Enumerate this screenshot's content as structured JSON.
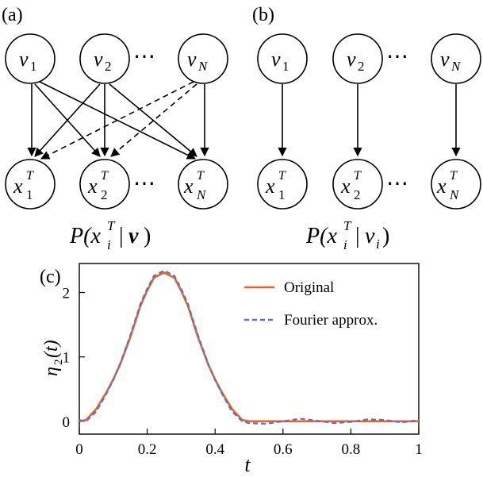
{
  "panels": {
    "a": {
      "label": "(a)",
      "top_nodes": [
        "v",
        "v",
        "v"
      ],
      "top_subs": [
        "1",
        "2",
        "N"
      ],
      "bottom_base": [
        "x",
        "x",
        "x"
      ],
      "bottom_sup": "T",
      "bottom_subs": [
        "1",
        "2",
        "N"
      ],
      "dots": "⋯",
      "caption_prefix": "P(",
      "caption_var": "x",
      "caption_sup": "T",
      "caption_sub": "i",
      "caption_bar": "|",
      "caption_cond": "v",
      "caption_suffix": ")"
    },
    "b": {
      "label": "(b)",
      "top_nodes": [
        "v",
        "v",
        "v"
      ],
      "top_subs": [
        "1",
        "2",
        "N"
      ],
      "bottom_base": [
        "x",
        "x",
        "x"
      ],
      "bottom_sup": "T",
      "bottom_subs": [
        "1",
        "2",
        "N"
      ],
      "dots": "⋯",
      "caption_prefix": "P(",
      "caption_var": "x",
      "caption_sup": "T",
      "caption_sub": "i",
      "caption_bar": "|",
      "caption_cond": "v",
      "caption_cond_sub": "i",
      "caption_suffix": ")"
    },
    "c": {
      "label": "(c)"
    }
  },
  "chart_data": {
    "type": "line",
    "xlabel": "t",
    "ylabel": "η₂(t)",
    "ylabel_base": "η",
    "ylabel_sub": "2",
    "ylabel_arg": "(t)",
    "xlim": [
      0,
      1
    ],
    "ylim": [
      -0.2,
      2.45
    ],
    "xticks": [
      "0",
      "0.2",
      "0.4",
      "0.6",
      "0.8",
      "1"
    ],
    "xtick_values": [
      0,
      0.2,
      0.4,
      0.6,
      0.8,
      1
    ],
    "yticks": [
      "0",
      "1",
      "2"
    ],
    "ytick_values": [
      0,
      1,
      2
    ],
    "grid": false,
    "legend_position": "top-right",
    "series": [
      {
        "name": "Original",
        "color": "#e8622c",
        "style": "solid",
        "x": [
          0,
          0.02,
          0.05,
          0.08,
          0.1,
          0.12,
          0.15,
          0.18,
          0.2,
          0.22,
          0.25,
          0.28,
          0.3,
          0.32,
          0.35,
          0.38,
          0.4,
          0.42,
          0.45,
          0.48,
          0.5,
          0.55,
          0.6,
          0.65,
          0.7,
          0.75,
          0.8,
          0.85,
          0.9,
          0.95,
          1.0
        ],
        "y": [
          0.0,
          0.02,
          0.19,
          0.45,
          0.65,
          0.88,
          1.3,
          1.79,
          2.03,
          2.23,
          2.31,
          2.23,
          2.03,
          1.79,
          1.3,
          0.88,
          0.65,
          0.45,
          0.19,
          0.02,
          0.0,
          0.0,
          0.0,
          0.0,
          0.0,
          0.0,
          0.0,
          0.0,
          0.0,
          0.0,
          0.0
        ]
      },
      {
        "name": "Fourier approx.",
        "color": "#5a74c9",
        "style": "dashed",
        "x": [
          0,
          0.02,
          0.05,
          0.08,
          0.1,
          0.12,
          0.15,
          0.18,
          0.2,
          0.22,
          0.25,
          0.28,
          0.3,
          0.32,
          0.35,
          0.38,
          0.4,
          0.42,
          0.45,
          0.48,
          0.5,
          0.55,
          0.6,
          0.65,
          0.7,
          0.75,
          0.8,
          0.85,
          0.9,
          0.95,
          1.0
        ],
        "y": [
          0.02,
          0.0,
          0.15,
          0.43,
          0.64,
          0.89,
          1.33,
          1.82,
          2.06,
          2.26,
          2.34,
          2.26,
          2.06,
          1.82,
          1.33,
          0.89,
          0.64,
          0.43,
          0.15,
          0.0,
          -0.03,
          -0.04,
          0.0,
          0.04,
          0.01,
          -0.03,
          -0.01,
          0.03,
          0.02,
          -0.02,
          0.02
        ]
      }
    ]
  }
}
